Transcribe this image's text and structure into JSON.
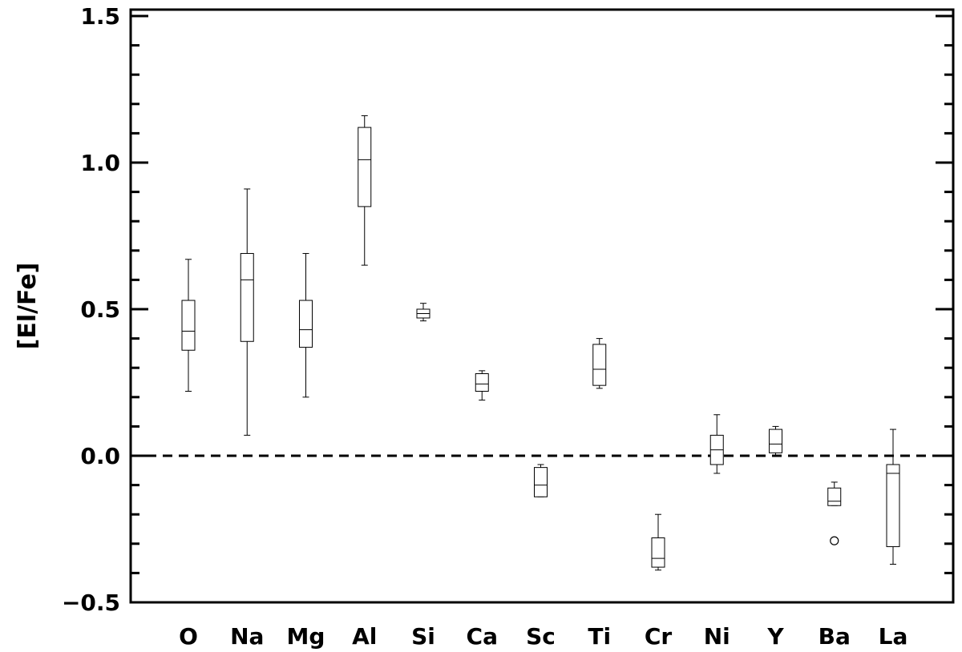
{
  "chart_data": {
    "type": "box",
    "title": "",
    "xlabel": "",
    "ylabel": "[El/Fe]",
    "ylim": [
      -0.5,
      1.5
    ],
    "yticks": [
      -0.5,
      0.0,
      0.5,
      1.0,
      1.5
    ],
    "ytick_labels": [
      "−0.5",
      "0.0",
      "0.5",
      "1.0",
      "1.5"
    ],
    "reference_line": {
      "y": 0.0,
      "style": "dashed"
    },
    "grid": false,
    "legend": "none",
    "categories": [
      "O",
      "Na",
      "Mg",
      "Al",
      "Si",
      "Ca",
      "Sc",
      "Ti",
      "Cr",
      "Ni",
      "Y",
      "Ba",
      "La"
    ],
    "boxes": [
      {
        "label": "O",
        "whisker_low": 0.22,
        "q1": 0.36,
        "median": 0.425,
        "q3": 0.53,
        "whisker_high": 0.67,
        "outliers": []
      },
      {
        "label": "Na",
        "whisker_low": 0.07,
        "q1": 0.39,
        "median": 0.6,
        "q3": 0.69,
        "whisker_high": 0.91,
        "outliers": []
      },
      {
        "label": "Mg",
        "whisker_low": 0.2,
        "q1": 0.37,
        "median": 0.43,
        "q3": 0.53,
        "whisker_high": 0.69,
        "outliers": []
      },
      {
        "label": "Al",
        "whisker_low": 0.65,
        "q1": 0.85,
        "median": 1.01,
        "q3": 1.12,
        "whisker_high": 1.16,
        "outliers": []
      },
      {
        "label": "Si",
        "whisker_low": 0.46,
        "q1": 0.47,
        "median": 0.485,
        "q3": 0.5,
        "whisker_high": 0.52,
        "outliers": []
      },
      {
        "label": "Ca",
        "whisker_low": 0.19,
        "q1": 0.22,
        "median": 0.245,
        "q3": 0.28,
        "whisker_high": 0.29,
        "outliers": []
      },
      {
        "label": "Sc",
        "whisker_low": -0.14,
        "q1": -0.14,
        "median": -0.1,
        "q3": -0.04,
        "whisker_high": -0.03,
        "outliers": []
      },
      {
        "label": "Ti",
        "whisker_low": 0.23,
        "q1": 0.24,
        "median": 0.295,
        "q3": 0.38,
        "whisker_high": 0.4,
        "outliers": []
      },
      {
        "label": "Cr",
        "whisker_low": -0.39,
        "q1": -0.38,
        "median": -0.35,
        "q3": -0.28,
        "whisker_high": -0.2,
        "outliers": []
      },
      {
        "label": "Ni",
        "whisker_low": -0.06,
        "q1": -0.03,
        "median": 0.02,
        "q3": 0.07,
        "whisker_high": 0.14,
        "outliers": []
      },
      {
        "label": "Y",
        "whisker_low": 0.0,
        "q1": 0.01,
        "median": 0.04,
        "q3": 0.09,
        "whisker_high": 0.1,
        "outliers": []
      },
      {
        "label": "Ba",
        "whisker_low": -0.17,
        "q1": -0.17,
        "median": -0.155,
        "q3": -0.11,
        "whisker_high": -0.09,
        "outliers": [
          -0.29
        ]
      },
      {
        "label": "La",
        "whisker_low": -0.37,
        "q1": -0.31,
        "median": -0.06,
        "q3": -0.03,
        "whisker_high": 0.09,
        "outliers": []
      }
    ]
  }
}
